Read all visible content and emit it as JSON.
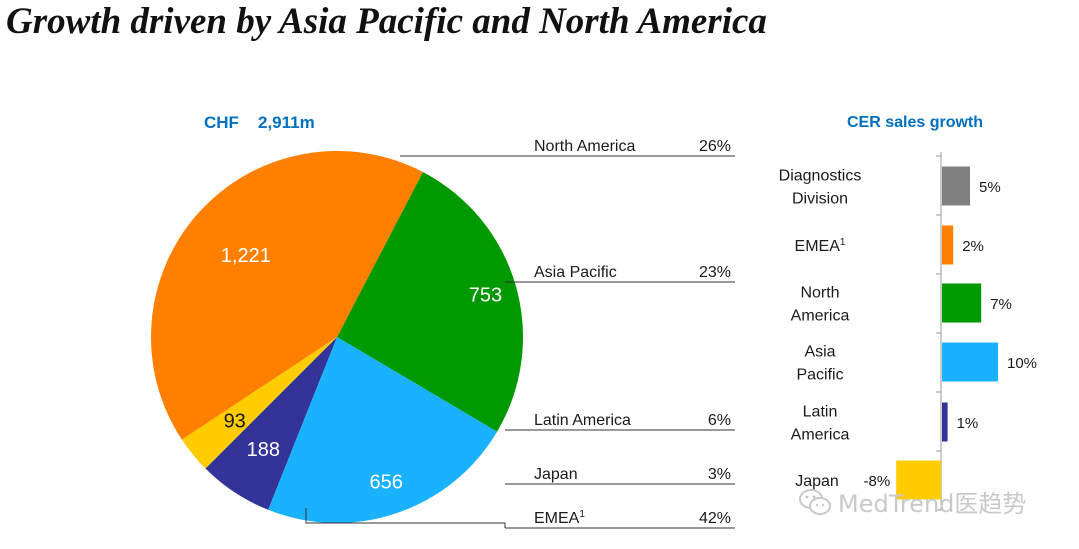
{
  "header": {
    "title": "Growth driven by Asia Pacific and North America"
  },
  "watermark": {
    "text": "MedTrend医趋势",
    "icon": "wechat-icon"
  },
  "colors": {
    "north_america": "#009900",
    "asia_pacific": "#1ab2ff",
    "latin_america": "#333399",
    "japan": "#ffcc00",
    "emea": "#ff8000",
    "diagnostics_division": "#808080",
    "heading_blue": "#0070c0"
  },
  "chart_data": [
    {
      "type": "pie",
      "title": "CHF",
      "subtitle": "2,911m",
      "slices": [
        {
          "label": "North America",
          "value": 753,
          "value_label": "753",
          "share": "26%",
          "color": "#009900"
        },
        {
          "label": "Asia Pacific",
          "value": 656,
          "value_label": "656",
          "share": "23%",
          "color": "#1ab2ff"
        },
        {
          "label": "Latin America",
          "value": 188,
          "value_label": "188",
          "share": "6%",
          "color": "#333399"
        },
        {
          "label": "Japan",
          "value": 93,
          "value_label": "93",
          "share": "3%",
          "color": "#ffcc00"
        },
        {
          "label": "EMEA",
          "sup": "1",
          "value": 1221,
          "value_label": "1,221",
          "share": "42%",
          "color": "#ff8000"
        }
      ]
    },
    {
      "type": "bar",
      "orientation": "horizontal",
      "title": "CER sales growth",
      "categories": [
        [
          "Diagnostics",
          "Division"
        ],
        [
          "EMEA"
        ],
        [
          "North",
          "America"
        ],
        [
          "Asia",
          "Pacific"
        ],
        [
          "Latin",
          "America"
        ],
        [
          "Japan"
        ]
      ],
      "category_sups": [
        "",
        "1",
        "",
        "",
        "",
        ""
      ],
      "values": [
        5,
        2,
        7,
        10,
        1,
        -8
      ],
      "value_labels": [
        "5%",
        "2%",
        "7%",
        "10%",
        "1%",
        "-8%"
      ],
      "colors": [
        "#808080",
        "#ff8000",
        "#009900",
        "#1ab2ff",
        "#333399",
        "#ffcc00"
      ]
    }
  ]
}
